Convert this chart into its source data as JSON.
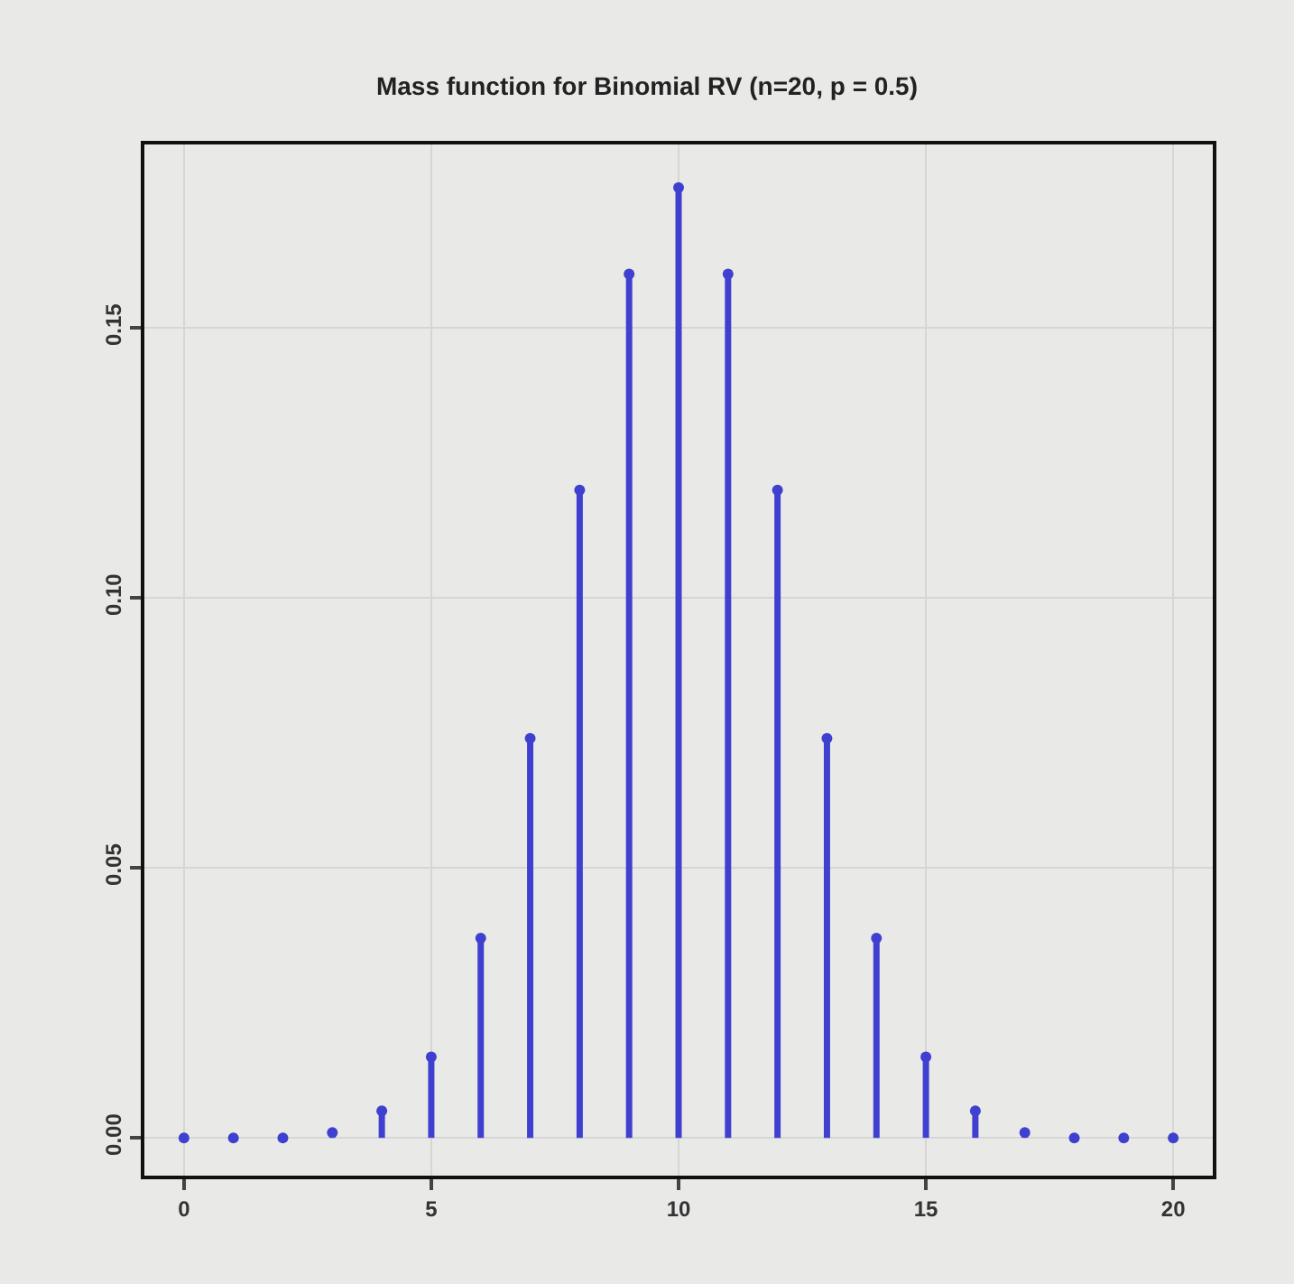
{
  "chart_data": {
    "type": "lollipop",
    "title": "Mass function for Binomial RV (n=20, p = 0.5)",
    "x": [
      0,
      1,
      2,
      3,
      4,
      5,
      6,
      7,
      8,
      9,
      10,
      11,
      12,
      13,
      14,
      15,
      16,
      17,
      18,
      19,
      20
    ],
    "values": [
      0,
      0,
      0,
      0.001,
      0.005,
      0.015,
      0.037,
      0.074,
      0.12,
      0.16,
      0.176,
      0.16,
      0.12,
      0.074,
      0.037,
      0.015,
      0.005,
      0.001,
      0,
      0,
      0
    ],
    "color": "#4040d0",
    "marker": "circle",
    "xlim": [
      -0.8,
      20.8
    ],
    "xticks": [
      0,
      5,
      10,
      15,
      20
    ],
    "ylim": [
      -0.007,
      0.184
    ],
    "yticks": [
      {
        "value": 0,
        "label": "0.00"
      },
      {
        "value": 0.05,
        "label": "0.05"
      },
      {
        "value": 0.1,
        "label": "0.10"
      },
      {
        "value": 0.15,
        "label": "0.15"
      }
    ],
    "grid": true
  }
}
